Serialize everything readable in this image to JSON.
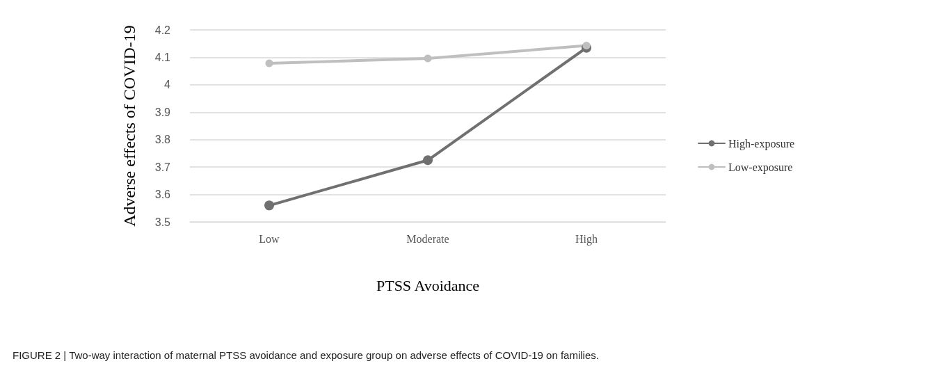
{
  "chart_data": {
    "type": "line",
    "xlabel": "PTSS Avoidance",
    "ylabel": "Adverse effects of COVID-19",
    "categories": [
      "Low",
      "Moderate",
      "High"
    ],
    "series": [
      {
        "name": "High-exposure",
        "color": "#707070",
        "values": [
          3.56,
          3.725,
          4.135
        ]
      },
      {
        "name": "Low-exposure",
        "color": "#bfbfbf",
        "values": [
          4.078,
          4.096,
          4.143
        ]
      }
    ],
    "ylim": [
      3.5,
      4.2
    ],
    "yticks": [
      3.5,
      3.6,
      3.7,
      3.8,
      3.9,
      4,
      4.1,
      4.2
    ],
    "grid": "y",
    "legend": "right",
    "marker": "circle",
    "line_style": "solid",
    "annotations": [
      "FIGURE 2 | Two-way interaction of maternal PTSS avoidance and exposure group on adverse effects of COVID-19 on families."
    ]
  }
}
